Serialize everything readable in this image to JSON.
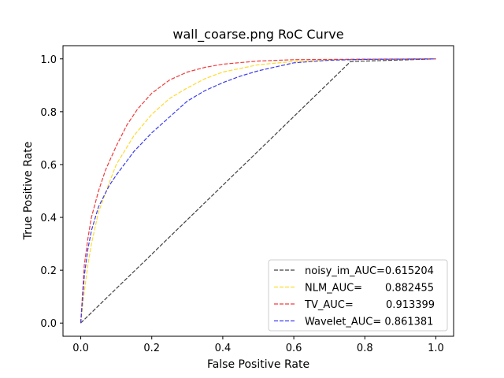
{
  "chart_data": {
    "type": "line",
    "title": "wall_coarse.png RoC Curve",
    "xlabel": "False Positive Rate",
    "ylabel": "True Positive Rate",
    "xlim": [
      -0.05,
      1.05
    ],
    "ylim": [
      -0.05,
      1.05
    ],
    "xticks": [
      0.0,
      0.2,
      0.4,
      0.6,
      0.8,
      1.0
    ],
    "yticks": [
      0.0,
      0.2,
      0.4,
      0.6,
      0.8,
      1.0
    ],
    "xtick_labels": [
      "0.0",
      "0.2",
      "0.4",
      "0.6",
      "0.8",
      "1.0"
    ],
    "ytick_labels": [
      "0.0",
      "0.2",
      "0.4",
      "0.6",
      "0.8",
      "1.0"
    ],
    "grid": false,
    "legend_position": "lower-right",
    "series": [
      {
        "name": "noisy_im_AUC=0.615204",
        "legend_label": "noisy_im_AUC=0.615204",
        "color": "#404040",
        "line_style": "dashed",
        "points": [
          [
            0.0,
            0.0
          ],
          [
            0.76,
            0.99
          ],
          [
            1.0,
            1.0
          ]
        ]
      },
      {
        "name": "NLM_AUC=       0.882455",
        "legend_label": "NLM_AUC=       0.882455",
        "color": "#ffd92f",
        "line_style": "dashed",
        "points": [
          [
            0.0,
            0.0
          ],
          [
            0.01,
            0.12
          ],
          [
            0.02,
            0.22
          ],
          [
            0.03,
            0.3
          ],
          [
            0.05,
            0.42
          ],
          [
            0.08,
            0.53
          ],
          [
            0.1,
            0.6
          ],
          [
            0.15,
            0.71
          ],
          [
            0.2,
            0.79
          ],
          [
            0.25,
            0.85
          ],
          [
            0.3,
            0.89
          ],
          [
            0.35,
            0.925
          ],
          [
            0.4,
            0.95
          ],
          [
            0.5,
            0.978
          ],
          [
            0.6,
            0.99
          ],
          [
            0.7,
            0.996
          ],
          [
            0.8,
            0.998
          ],
          [
            1.0,
            1.0
          ]
        ]
      },
      {
        "name": "TV_AUC=          0.913399",
        "legend_label": "TV_AUC=          0.913399",
        "color": "#f03c3c",
        "line_style": "dashed",
        "points": [
          [
            0.0,
            0.0
          ],
          [
            0.01,
            0.22
          ],
          [
            0.02,
            0.32
          ],
          [
            0.03,
            0.4
          ],
          [
            0.05,
            0.5
          ],
          [
            0.07,
            0.58
          ],
          [
            0.1,
            0.67
          ],
          [
            0.13,
            0.75
          ],
          [
            0.16,
            0.81
          ],
          [
            0.2,
            0.87
          ],
          [
            0.25,
            0.92
          ],
          [
            0.3,
            0.95
          ],
          [
            0.35,
            0.968
          ],
          [
            0.4,
            0.98
          ],
          [
            0.5,
            0.992
          ],
          [
            0.6,
            0.997
          ],
          [
            0.8,
            0.999
          ],
          [
            1.0,
            1.0
          ]
        ]
      },
      {
        "name": "Wavelet_AUC= 0.861381",
        "legend_label": "Wavelet_AUC= 0.861381",
        "color": "#3c3cf0",
        "line_style": "dashed",
        "points": [
          [
            0.0,
            0.0
          ],
          [
            0.01,
            0.18
          ],
          [
            0.02,
            0.28
          ],
          [
            0.03,
            0.35
          ],
          [
            0.05,
            0.44
          ],
          [
            0.08,
            0.52
          ],
          [
            0.1,
            0.56
          ],
          [
            0.15,
            0.65
          ],
          [
            0.2,
            0.72
          ],
          [
            0.25,
            0.78
          ],
          [
            0.3,
            0.84
          ],
          [
            0.35,
            0.88
          ],
          [
            0.4,
            0.91
          ],
          [
            0.45,
            0.935
          ],
          [
            0.5,
            0.955
          ],
          [
            0.6,
            0.985
          ],
          [
            0.7,
            0.995
          ],
          [
            0.8,
            0.998
          ],
          [
            1.0,
            1.0
          ]
        ]
      }
    ]
  }
}
